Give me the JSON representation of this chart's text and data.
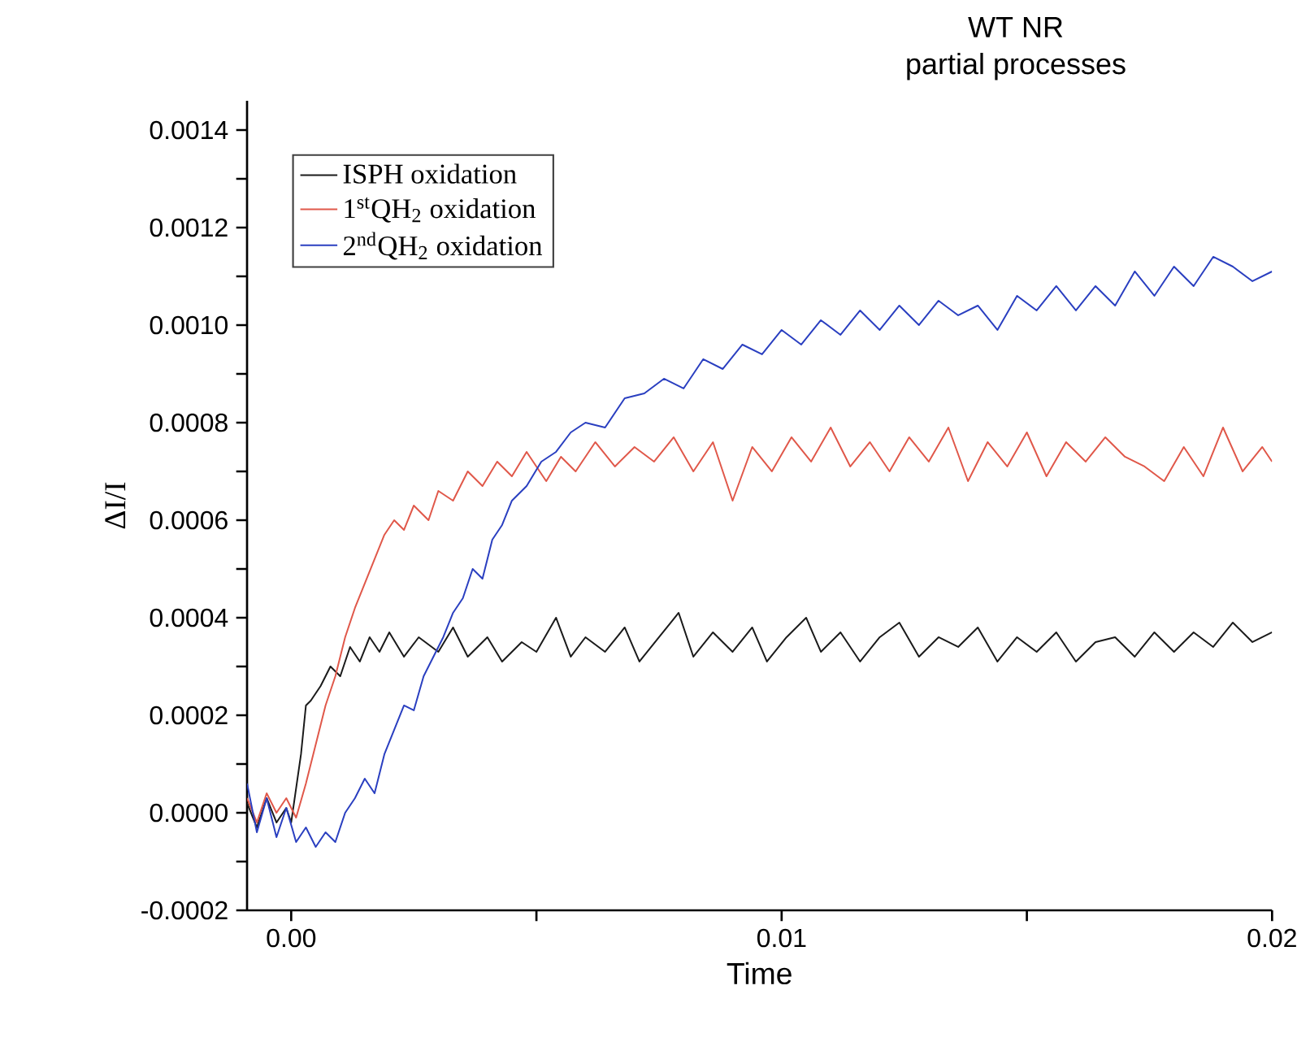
{
  "chart_data": {
    "type": "line",
    "title": "WT NR",
    "subtitle": "partial processes",
    "xlabel": "Time",
    "ylabel": "ΔI/I",
    "xlim": [
      -0.0009,
      0.02
    ],
    "ylim": [
      -0.0002,
      0.00146
    ],
    "xticks": [
      {
        "value": 0,
        "label": "0.00"
      },
      {
        "value": 0.005,
        "label": null
      },
      {
        "value": 0.01,
        "label": "0.01"
      },
      {
        "value": 0.015,
        "label": null
      },
      {
        "value": 0.02,
        "label": "0.02"
      }
    ],
    "yticks": [
      {
        "value": -0.0002,
        "label": "-0.0002"
      },
      {
        "value": -0.0001,
        "label": null
      },
      {
        "value": 0,
        "label": "0.0000"
      },
      {
        "value": 0.0001,
        "label": null
      },
      {
        "value": 0.0002,
        "label": "0.0002"
      },
      {
        "value": 0.0003,
        "label": null
      },
      {
        "value": 0.0004,
        "label": "0.0004"
      },
      {
        "value": 0.0005,
        "label": null
      },
      {
        "value": 0.0006,
        "label": "0.0006"
      },
      {
        "value": 0.0007,
        "label": null
      },
      {
        "value": 0.0008,
        "label": "0.0008"
      },
      {
        "value": 0.0009,
        "label": null
      },
      {
        "value": 0.001,
        "label": "0.0010"
      },
      {
        "value": 0.0011,
        "label": null
      },
      {
        "value": 0.0012,
        "label": "0.0012"
      },
      {
        "value": 0.0013,
        "label": null
      },
      {
        "value": 0.0014,
        "label": "0.0014"
      }
    ],
    "grid": false,
    "legend": "top left",
    "marker": "none",
    "series": [
      {
        "name": "ISPH oxidation",
        "color": "#1a1a1a",
        "x": [
          -0.0009,
          -0.0007,
          -0.0005,
          -0.0003,
          -0.0001,
          0.0,
          0.0001,
          0.0002,
          0.0003,
          0.0004,
          0.0006,
          0.0008,
          0.001,
          0.0012,
          0.0014,
          0.0016,
          0.0018,
          0.002,
          0.0023,
          0.0026,
          0.003,
          0.0033,
          0.0036,
          0.004,
          0.0043,
          0.0047,
          0.005,
          0.0054,
          0.0057,
          0.006,
          0.0064,
          0.0068,
          0.0071,
          0.0075,
          0.0079,
          0.0082,
          0.0086,
          0.009,
          0.0094,
          0.0097,
          0.0101,
          0.0105,
          0.0108,
          0.0112,
          0.0116,
          0.012,
          0.0124,
          0.0128,
          0.0132,
          0.0136,
          0.014,
          0.0144,
          0.0148,
          0.0152,
          0.0156,
          0.016,
          0.0164,
          0.0168,
          0.0172,
          0.0176,
          0.018,
          0.0184,
          0.0188,
          0.0192,
          0.0196,
          0.02
        ],
        "values": [
          2e-05,
          -3e-05,
          3e-05,
          -2e-05,
          1e-05,
          -2e-05,
          5e-05,
          0.00012,
          0.00022,
          0.00023,
          0.00026,
          0.0003,
          0.00028,
          0.00034,
          0.00031,
          0.00036,
          0.00033,
          0.00037,
          0.00032,
          0.00036,
          0.00033,
          0.00038,
          0.00032,
          0.00036,
          0.00031,
          0.00035,
          0.00033,
          0.0004,
          0.00032,
          0.00036,
          0.00033,
          0.00038,
          0.00031,
          0.00036,
          0.00041,
          0.00032,
          0.00037,
          0.00033,
          0.00038,
          0.00031,
          0.00036,
          0.0004,
          0.00033,
          0.00037,
          0.00031,
          0.00036,
          0.00039,
          0.00032,
          0.00036,
          0.00034,
          0.00038,
          0.00031,
          0.00036,
          0.00033,
          0.00037,
          0.00031,
          0.00035,
          0.00036,
          0.00032,
          0.00037,
          0.00033,
          0.00037,
          0.00034,
          0.00039,
          0.00035,
          0.00037
        ]
      },
      {
        "name": "1$^{st}$QH$_{2}$ oxidation",
        "color": "#e0584a",
        "x": [
          -0.0009,
          -0.0007,
          -0.0005,
          -0.0003,
          -0.0001,
          0.0001,
          0.0003,
          0.0005,
          0.0007,
          0.0009,
          0.0011,
          0.0013,
          0.0015,
          0.0017,
          0.0019,
          0.0021,
          0.0023,
          0.0025,
          0.0028,
          0.003,
          0.0033,
          0.0036,
          0.0039,
          0.0042,
          0.0045,
          0.0048,
          0.0052,
          0.0055,
          0.0058,
          0.0062,
          0.0066,
          0.007,
          0.0074,
          0.0078,
          0.0082,
          0.0086,
          0.009,
          0.0094,
          0.0098,
          0.0102,
          0.0106,
          0.011,
          0.0114,
          0.0118,
          0.0122,
          0.0126,
          0.013,
          0.0134,
          0.0138,
          0.0142,
          0.0146,
          0.015,
          0.0154,
          0.0158,
          0.0162,
          0.0166,
          0.017,
          0.0174,
          0.0178,
          0.0182,
          0.0186,
          0.019,
          0.0194,
          0.0198,
          0.02
        ],
        "values": [
          3e-05,
          -2e-05,
          4e-05,
          0.0,
          3e-05,
          -1e-05,
          6e-05,
          0.00014,
          0.00022,
          0.00028,
          0.00036,
          0.00042,
          0.00047,
          0.00052,
          0.00057,
          0.0006,
          0.00058,
          0.00063,
          0.0006,
          0.00066,
          0.00064,
          0.0007,
          0.00067,
          0.00072,
          0.00069,
          0.00074,
          0.00068,
          0.00073,
          0.0007,
          0.00076,
          0.00071,
          0.00075,
          0.00072,
          0.00077,
          0.0007,
          0.00076,
          0.00064,
          0.00075,
          0.0007,
          0.00077,
          0.00072,
          0.00079,
          0.00071,
          0.00076,
          0.0007,
          0.00077,
          0.00072,
          0.00079,
          0.00068,
          0.00076,
          0.00071,
          0.00078,
          0.00069,
          0.00076,
          0.00072,
          0.00077,
          0.00073,
          0.00071,
          0.00068,
          0.00075,
          0.00069,
          0.00079,
          0.0007,
          0.00075,
          0.00072
        ]
      },
      {
        "name": "2$^{nd}$QH$_{2}$ oxidation",
        "color": "#2a3fc0",
        "x": [
          -0.0009,
          -0.0007,
          -0.0005,
          -0.0003,
          -0.0001,
          0.0001,
          0.0003,
          0.0005,
          0.0007,
          0.0009,
          0.0011,
          0.0013,
          0.0015,
          0.0017,
          0.0019,
          0.0021,
          0.0023,
          0.0025,
          0.0027,
          0.0029,
          0.0031,
          0.0033,
          0.0035,
          0.0037,
          0.0039,
          0.0041,
          0.0043,
          0.0045,
          0.0048,
          0.0051,
          0.0054,
          0.0057,
          0.006,
          0.0064,
          0.0068,
          0.0072,
          0.0076,
          0.008,
          0.0084,
          0.0088,
          0.0092,
          0.0096,
          0.01,
          0.0104,
          0.0108,
          0.0112,
          0.0116,
          0.012,
          0.0124,
          0.0128,
          0.0132,
          0.0136,
          0.014,
          0.0144,
          0.0148,
          0.0152,
          0.0156,
          0.016,
          0.0164,
          0.0168,
          0.0172,
          0.0176,
          0.018,
          0.0184,
          0.0188,
          0.0192,
          0.0196,
          0.02
        ],
        "values": [
          6e-05,
          -4e-05,
          3e-05,
          -5e-05,
          1e-05,
          -6e-05,
          -3e-05,
          -7e-05,
          -4e-05,
          -6e-05,
          0.0,
          3e-05,
          7e-05,
          4e-05,
          0.00012,
          0.00017,
          0.00022,
          0.00021,
          0.00028,
          0.00032,
          0.00036,
          0.00041,
          0.00044,
          0.0005,
          0.00048,
          0.00056,
          0.00059,
          0.00064,
          0.00067,
          0.00072,
          0.00074,
          0.00078,
          0.0008,
          0.00079,
          0.00085,
          0.00086,
          0.00089,
          0.00087,
          0.00093,
          0.00091,
          0.00096,
          0.00094,
          0.00099,
          0.00096,
          0.00101,
          0.00098,
          0.00103,
          0.00099,
          0.00104,
          0.001,
          0.00105,
          0.00102,
          0.00104,
          0.00099,
          0.00106,
          0.00103,
          0.00108,
          0.00103,
          0.00108,
          0.00104,
          0.00111,
          0.00106,
          0.00112,
          0.00108,
          0.00114,
          0.00112,
          0.00109,
          0.00111
        ]
      }
    ]
  }
}
